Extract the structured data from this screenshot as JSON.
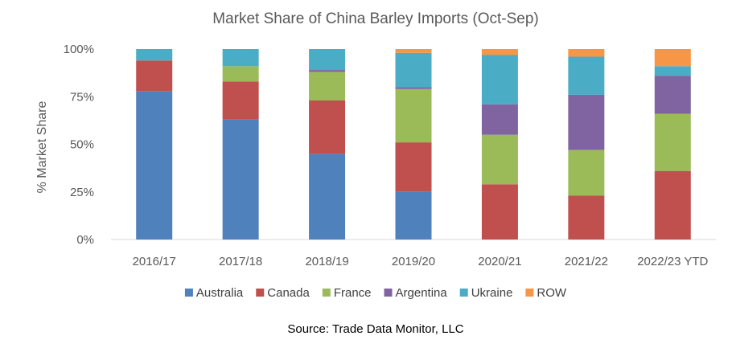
{
  "chart_data": {
    "type": "bar",
    "stacked": true,
    "title": "Market Share of China Barley Imports (Oct-Sep)",
    "ylabel": "% Market Share",
    "xlabel": "",
    "ylim": [
      0,
      100
    ],
    "yticks": [
      "0%",
      "25%",
      "50%",
      "75%",
      "100%"
    ],
    "ytick_values": [
      0,
      25,
      50,
      75,
      100
    ],
    "grid": false,
    "legend_position": "bottom",
    "categories": [
      "2016/17",
      "2017/18",
      "2018/19",
      "2019/20",
      "2020/21",
      "2021/22",
      "2022/23 YTD"
    ],
    "series": [
      {
        "name": "Australia",
        "color": "#4F81BD",
        "values": [
          78,
          63,
          45,
          25,
          0,
          0,
          0
        ]
      },
      {
        "name": "Canada",
        "color": "#C0504D",
        "values": [
          16,
          20,
          28,
          26,
          29,
          23,
          36
        ]
      },
      {
        "name": "France",
        "color": "#9BBB59",
        "values": [
          0,
          8,
          15,
          28,
          26,
          24,
          30
        ]
      },
      {
        "name": "Argentina",
        "color": "#8064A2",
        "values": [
          0,
          0,
          1,
          1,
          16,
          29,
          20
        ]
      },
      {
        "name": "Ukraine",
        "color": "#4BACC6",
        "values": [
          6,
          9,
          11,
          18,
          26,
          20,
          5
        ]
      },
      {
        "name": "ROW",
        "color": "#F79646",
        "values": [
          0,
          0,
          0,
          2,
          3,
          4,
          9
        ]
      }
    ],
    "source": "Source: Trade Data Monitor, LLC"
  }
}
